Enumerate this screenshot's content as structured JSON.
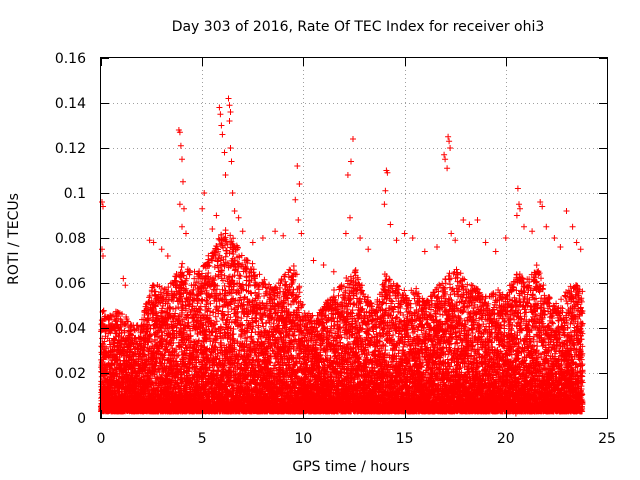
{
  "chart_data": {
    "type": "scatter",
    "title": "Day 303 of 2016, Rate Of TEC Index for receiver ohi3",
    "xlabel": "GPS time / hours",
    "ylabel": "ROTI / TECUs",
    "xlim": [
      0,
      25
    ],
    "ylim": [
      0,
      0.16
    ],
    "x_ticks": [
      0,
      5,
      10,
      15,
      20,
      25
    ],
    "x_tick_labels": [
      "0",
      "5",
      "10",
      "15",
      "20",
      "25"
    ],
    "y_ticks": [
      0,
      0.02,
      0.04,
      0.06,
      0.08,
      0.1,
      0.12,
      0.14,
      0.16
    ],
    "y_tick_labels": [
      "0",
      "0.02",
      "0.04",
      "0.06",
      "0.08",
      "0.1",
      "0.12",
      "0.14",
      "0.16"
    ],
    "grid": true,
    "marker": "+",
    "color": "#ff0000",
    "series": [
      {
        "name": "ohi3",
        "density_samples_per_bin": 70,
        "bin_width_hours": 0.1,
        "x_range": [
          0,
          23.8
        ],
        "envelope": [
          [
            0.0,
            0.05
          ],
          [
            0.3,
            0.045
          ],
          [
            0.8,
            0.048
          ],
          [
            1.2,
            0.045
          ],
          [
            1.6,
            0.04
          ],
          [
            2.0,
            0.045
          ],
          [
            2.5,
            0.06
          ],
          [
            3.0,
            0.058
          ],
          [
            3.5,
            0.062
          ],
          [
            4.0,
            0.07
          ],
          [
            4.5,
            0.065
          ],
          [
            5.0,
            0.068
          ],
          [
            5.5,
            0.075
          ],
          [
            6.0,
            0.085
          ],
          [
            6.5,
            0.08
          ],
          [
            7.0,
            0.072
          ],
          [
            7.5,
            0.068
          ],
          [
            8.0,
            0.062
          ],
          [
            8.5,
            0.058
          ],
          [
            9.0,
            0.064
          ],
          [
            9.5,
            0.068
          ],
          [
            10.0,
            0.048
          ],
          [
            10.5,
            0.045
          ],
          [
            11.0,
            0.05
          ],
          [
            11.5,
            0.058
          ],
          [
            12.0,
            0.062
          ],
          [
            12.5,
            0.066
          ],
          [
            13.0,
            0.055
          ],
          [
            13.5,
            0.05
          ],
          [
            14.0,
            0.064
          ],
          [
            14.5,
            0.06
          ],
          [
            15.0,
            0.056
          ],
          [
            15.5,
            0.058
          ],
          [
            16.0,
            0.052
          ],
          [
            16.5,
            0.058
          ],
          [
            17.0,
            0.062
          ],
          [
            17.5,
            0.068
          ],
          [
            18.0,
            0.06
          ],
          [
            18.5,
            0.058
          ],
          [
            19.0,
            0.055
          ],
          [
            19.5,
            0.058
          ],
          [
            20.0,
            0.055
          ],
          [
            20.5,
            0.065
          ],
          [
            21.0,
            0.062
          ],
          [
            21.5,
            0.068
          ],
          [
            22.0,
            0.055
          ],
          [
            22.5,
            0.05
          ],
          [
            23.0,
            0.058
          ],
          [
            23.5,
            0.06
          ],
          [
            23.8,
            0.055
          ]
        ],
        "peaks": [
          [
            0.05,
            0.096
          ],
          [
            0.1,
            0.094
          ],
          [
            0.05,
            0.075
          ],
          [
            0.1,
            0.072
          ],
          [
            1.1,
            0.062
          ],
          [
            1.2,
            0.059
          ],
          [
            2.4,
            0.079
          ],
          [
            2.6,
            0.078
          ],
          [
            3.0,
            0.075
          ],
          [
            3.3,
            0.072
          ],
          [
            3.85,
            0.128
          ],
          [
            3.9,
            0.127
          ],
          [
            3.95,
            0.121
          ],
          [
            4.0,
            0.115
          ],
          [
            4.05,
            0.105
          ],
          [
            3.9,
            0.095
          ],
          [
            4.1,
            0.093
          ],
          [
            4.0,
            0.085
          ],
          [
            4.2,
            0.082
          ],
          [
            5.0,
            0.093
          ],
          [
            5.1,
            0.1
          ],
          [
            5.5,
            0.084
          ],
          [
            5.7,
            0.09
          ],
          [
            5.85,
            0.138
          ],
          [
            5.9,
            0.135
          ],
          [
            5.95,
            0.13
          ],
          [
            6.0,
            0.126
          ],
          [
            6.1,
            0.118
          ],
          [
            6.15,
            0.108
          ],
          [
            6.3,
            0.142
          ],
          [
            6.35,
            0.139
          ],
          [
            6.4,
            0.136
          ],
          [
            6.35,
            0.132
          ],
          [
            6.4,
            0.12
          ],
          [
            6.45,
            0.114
          ],
          [
            6.5,
            0.1
          ],
          [
            6.6,
            0.092
          ],
          [
            6.8,
            0.089
          ],
          [
            7.0,
            0.083
          ],
          [
            7.5,
            0.078
          ],
          [
            8.0,
            0.08
          ],
          [
            8.6,
            0.083
          ],
          [
            9.0,
            0.081
          ],
          [
            9.7,
            0.112
          ],
          [
            9.8,
            0.104
          ],
          [
            9.6,
            0.097
          ],
          [
            9.75,
            0.088
          ],
          [
            9.9,
            0.082
          ],
          [
            10.5,
            0.07
          ],
          [
            11.0,
            0.068
          ],
          [
            11.5,
            0.065
          ],
          [
            12.2,
            0.108
          ],
          [
            12.35,
            0.114
          ],
          [
            12.45,
            0.124
          ],
          [
            12.3,
            0.089
          ],
          [
            12.1,
            0.082
          ],
          [
            12.8,
            0.08
          ],
          [
            13.2,
            0.075
          ],
          [
            14.1,
            0.11
          ],
          [
            14.15,
            0.109
          ],
          [
            14.05,
            0.101
          ],
          [
            14.0,
            0.095
          ],
          [
            14.3,
            0.086
          ],
          [
            14.6,
            0.079
          ],
          [
            15.0,
            0.082
          ],
          [
            15.4,
            0.08
          ],
          [
            16.0,
            0.074
          ],
          [
            16.6,
            0.076
          ],
          [
            16.95,
            0.117
          ],
          [
            17.0,
            0.115
          ],
          [
            17.15,
            0.125
          ],
          [
            17.2,
            0.123
          ],
          [
            17.25,
            0.12
          ],
          [
            17.1,
            0.111
          ],
          [
            17.3,
            0.082
          ],
          [
            17.5,
            0.079
          ],
          [
            17.9,
            0.088
          ],
          [
            18.2,
            0.086
          ],
          [
            18.6,
            0.088
          ],
          [
            19.0,
            0.078
          ],
          [
            19.5,
            0.074
          ],
          [
            20.0,
            0.08
          ],
          [
            20.6,
            0.102
          ],
          [
            20.65,
            0.095
          ],
          [
            20.7,
            0.093
          ],
          [
            20.55,
            0.09
          ],
          [
            20.9,
            0.085
          ],
          [
            21.3,
            0.083
          ],
          [
            21.7,
            0.096
          ],
          [
            21.8,
            0.094
          ],
          [
            22.0,
            0.085
          ],
          [
            22.4,
            0.08
          ],
          [
            22.7,
            0.076
          ],
          [
            23.0,
            0.092
          ],
          [
            23.3,
            0.085
          ],
          [
            23.5,
            0.078
          ],
          [
            23.7,
            0.075
          ],
          [
            20.1,
            0.003
          ],
          [
            20.5,
            0.002
          ]
        ]
      }
    ]
  }
}
